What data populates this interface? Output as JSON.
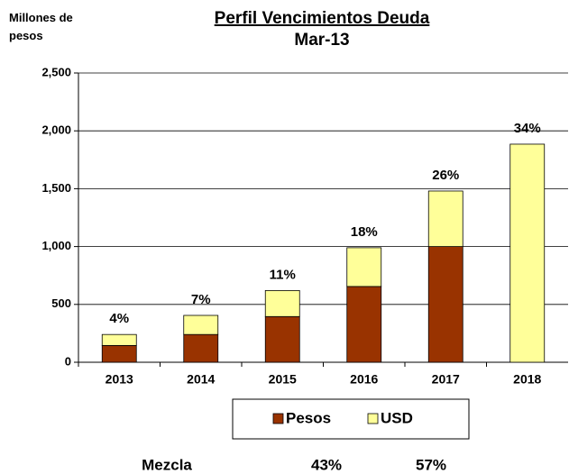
{
  "chart_data": {
    "type": "stacked_bar",
    "title": "Perfil Vencimientos Deuda",
    "subtitle": "Mar-13",
    "y_axis_label": "Millones de pesos",
    "categories": [
      "2013",
      "2014",
      "2015",
      "2016",
      "2017",
      "2018"
    ],
    "series": [
      {
        "name": "Pesos",
        "color": "#993300",
        "values": [
          145,
          240,
          395,
          655,
          1000,
          0
        ]
      },
      {
        "name": "USD",
        "color": "#ffff99",
        "values": [
          95,
          165,
          225,
          335,
          480,
          1885
        ]
      }
    ],
    "bar_annotations": [
      "4%",
      "7%",
      "11%",
      "18%",
      "26%",
      "34%"
    ],
    "ylim": [
      0,
      2500
    ],
    "yticks": [
      0,
      500,
      {
        "value": 1000,
        "label": "1,000"
      },
      {
        "value": 1500,
        "label": "1,500"
      },
      {
        "value": 2000,
        "label": "2,000"
      },
      {
        "value": 2500,
        "label": "2,500"
      }
    ],
    "grid": true,
    "legend": "bottom",
    "mix": {
      "label": "Mezcla",
      "values": [
        "43%",
        "57%"
      ]
    }
  }
}
